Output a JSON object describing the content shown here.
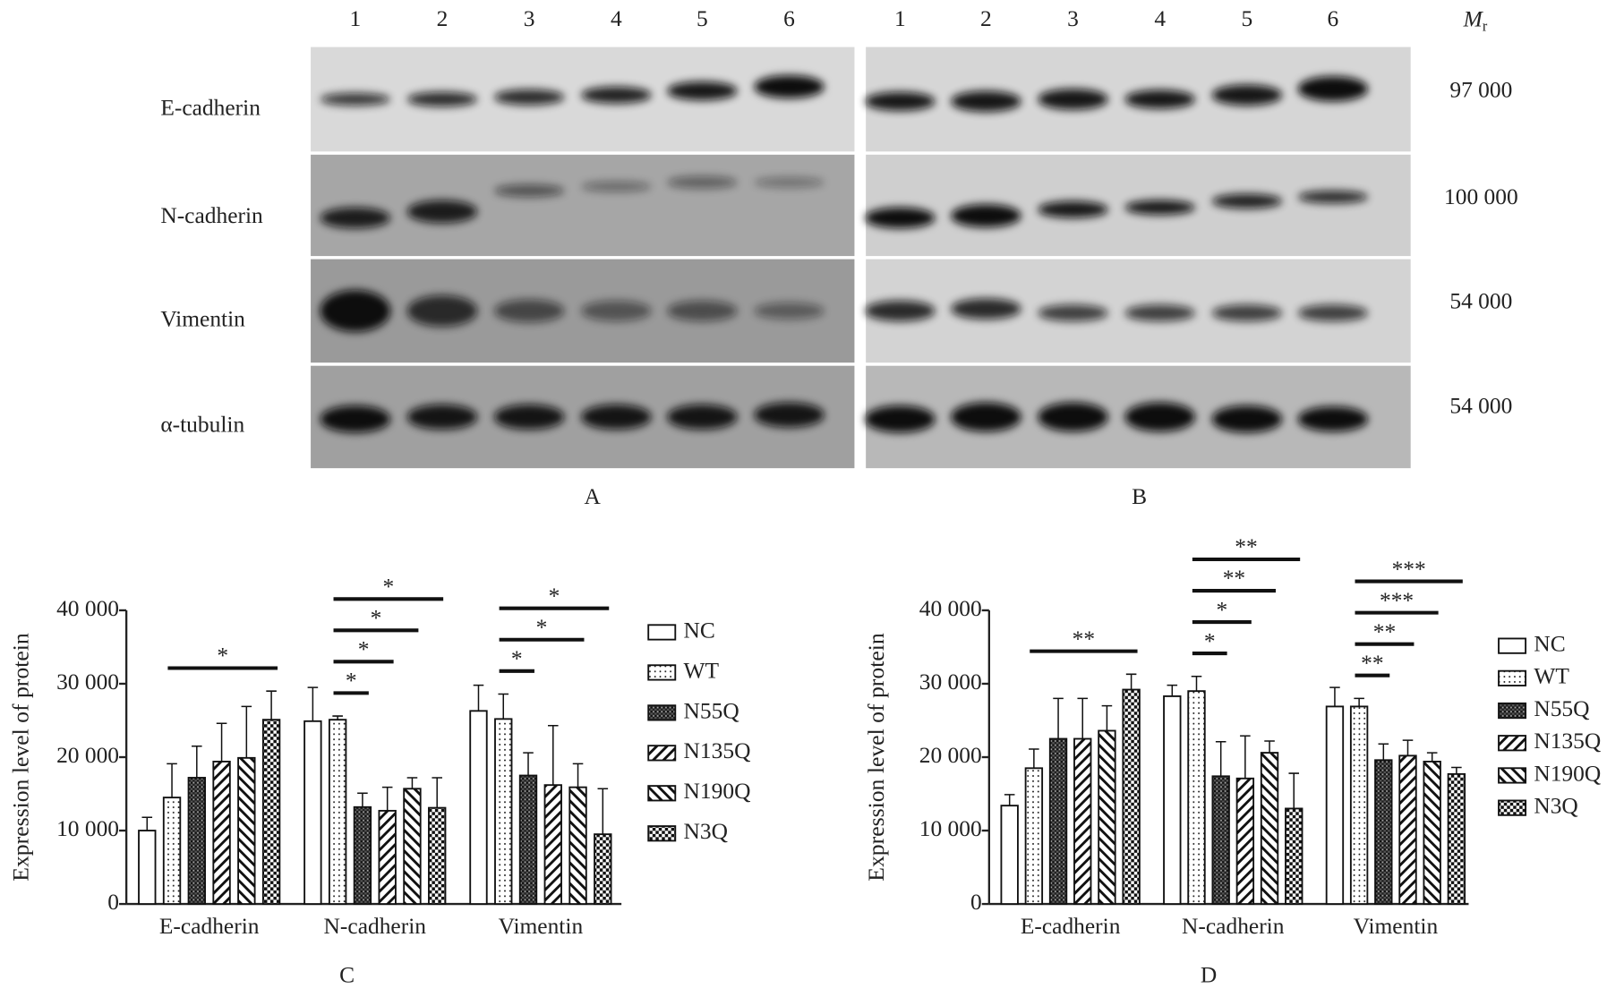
{
  "blots": {
    "lanes": [
      "1",
      "2",
      "3",
      "4",
      "5",
      "6"
    ],
    "rows": [
      "E-cadherin",
      "N-cadherin",
      "Vimentin",
      "α-tubulin"
    ],
    "mr_label": "M",
    "mr_sub": "r",
    "mr_values": [
      "97 000",
      "100 000",
      "54 000",
      "54 000"
    ],
    "panels": [
      "A",
      "B"
    ]
  },
  "chart_data": [
    {
      "type": "bar",
      "panel": "C",
      "y_label": "Expression level of protein",
      "categories": [
        "E-cadherin",
        "N-cadherin",
        "Vimentin"
      ],
      "ylim": [
        0,
        40000
      ],
      "yticks": [
        0,
        {
          "value": 10000,
          "label": "10 000"
        },
        {
          "value": 20000,
          "label": "20 000"
        },
        {
          "value": 30000,
          "label": "30 000"
        },
        {
          "value": 40000,
          "label": "40 000"
        }
      ],
      "legend": "right",
      "series": [
        {
          "name": "NC",
          "color": "#111",
          "pattern": "none",
          "values": [
            10000,
            24900,
            26300
          ],
          "errors": [
            1800,
            4600,
            3500
          ]
        },
        {
          "name": "WT",
          "color": "#111",
          "pattern": "dots",
          "values": [
            14500,
            25100,
            25200
          ],
          "errors": [
            4600,
            500,
            3400
          ]
        },
        {
          "name": "N55Q",
          "color": "#111",
          "pattern": "grid",
          "values": [
            17200,
            13200,
            17500
          ],
          "errors": [
            4300,
            1900,
            3100
          ]
        },
        {
          "name": "N135Q",
          "color": "#111",
          "pattern": "slash",
          "values": [
            19400,
            12700,
            16200
          ],
          "errors": [
            5200,
            3200,
            8100
          ]
        },
        {
          "name": "N190Q",
          "color": "#111",
          "pattern": "backslash",
          "values": [
            19900,
            15700,
            15900
          ],
          "errors": [
            7000,
            1500,
            3200
          ]
        },
        {
          "name": "N3Q",
          "color": "#111",
          "pattern": "checker",
          "values": [
            25100,
            13100,
            9500
          ],
          "errors": [
            3900,
            4100,
            6200
          ]
        }
      ],
      "annotations": [
        {
          "text": "*",
          "category": "E-cadherin",
          "from": "WT",
          "to": "N3Q"
        },
        {
          "text": "*",
          "category": "N-cadherin",
          "from": "WT",
          "to": "N55Q"
        },
        {
          "text": "*",
          "category": "N-cadherin",
          "from": "WT",
          "to": "N135Q"
        },
        {
          "text": "*",
          "category": "N-cadherin",
          "from": "WT",
          "to": "N190Q"
        },
        {
          "text": "*",
          "category": "N-cadherin",
          "from": "WT",
          "to": "N3Q"
        },
        {
          "text": "*",
          "category": "Vimentin",
          "from": "WT",
          "to": "N55Q"
        },
        {
          "text": "*",
          "category": "Vimentin",
          "from": "WT",
          "to": "N190Q"
        },
        {
          "text": "*",
          "category": "Vimentin",
          "from": "WT",
          "to": "N3Q"
        }
      ]
    },
    {
      "type": "bar",
      "panel": "D",
      "y_label": "Expression level of protein",
      "categories": [
        "E-cadherin",
        "N-cadherin",
        "Vimentin"
      ],
      "ylim": [
        0,
        40000
      ],
      "yticks": [
        0,
        {
          "value": 10000,
          "label": "10 000"
        },
        {
          "value": 20000,
          "label": "20 000"
        },
        {
          "value": 30000,
          "label": "30 000"
        },
        {
          "value": 40000,
          "label": "40 000"
        }
      ],
      "legend": "right",
      "series": [
        {
          "name": "NC",
          "color": "#111",
          "pattern": "none",
          "values": [
            13400,
            28300,
            26900
          ],
          "errors": [
            1500,
            1500,
            2600
          ]
        },
        {
          "name": "WT",
          "color": "#111",
          "pattern": "dots",
          "values": [
            18500,
            29000,
            26900
          ],
          "errors": [
            2600,
            2000,
            1100
          ]
        },
        {
          "name": "N55Q",
          "color": "#111",
          "pattern": "grid",
          "values": [
            22500,
            17400,
            19600
          ],
          "errors": [
            5500,
            4700,
            2200
          ]
        },
        {
          "name": "N135Q",
          "color": "#111",
          "pattern": "slash",
          "values": [
            22500,
            17100,
            20200
          ],
          "errors": [
            5500,
            5800,
            2100
          ]
        },
        {
          "name": "N190Q",
          "color": "#111",
          "pattern": "backslash",
          "values": [
            23600,
            20600,
            19400
          ],
          "errors": [
            3400,
            1600,
            1200
          ]
        },
        {
          "name": "N3Q",
          "color": "#111",
          "pattern": "checker",
          "values": [
            29200,
            13000,
            17700
          ],
          "errors": [
            2100,
            4800,
            900
          ]
        }
      ],
      "annotations": [
        {
          "text": "**",
          "category": "E-cadherin",
          "from": "WT",
          "to": "N3Q"
        },
        {
          "text": "*",
          "category": "N-cadherin",
          "from": "WT",
          "to": "N55Q"
        },
        {
          "text": "*",
          "category": "N-cadherin",
          "from": "WT",
          "to": "N135Q"
        },
        {
          "text": "**",
          "category": "N-cadherin",
          "from": "WT",
          "to": "N190Q"
        },
        {
          "text": "**",
          "category": "N-cadherin",
          "from": "WT",
          "to": "N3Q"
        },
        {
          "text": "**",
          "category": "Vimentin",
          "from": "WT",
          "to": "N55Q"
        },
        {
          "text": "**",
          "category": "Vimentin",
          "from": "WT",
          "to": "N135Q"
        },
        {
          "text": "***",
          "category": "Vimentin",
          "from": "WT",
          "to": "N190Q"
        },
        {
          "text": "***",
          "category": "Vimentin",
          "from": "WT",
          "to": "N3Q"
        }
      ]
    }
  ]
}
